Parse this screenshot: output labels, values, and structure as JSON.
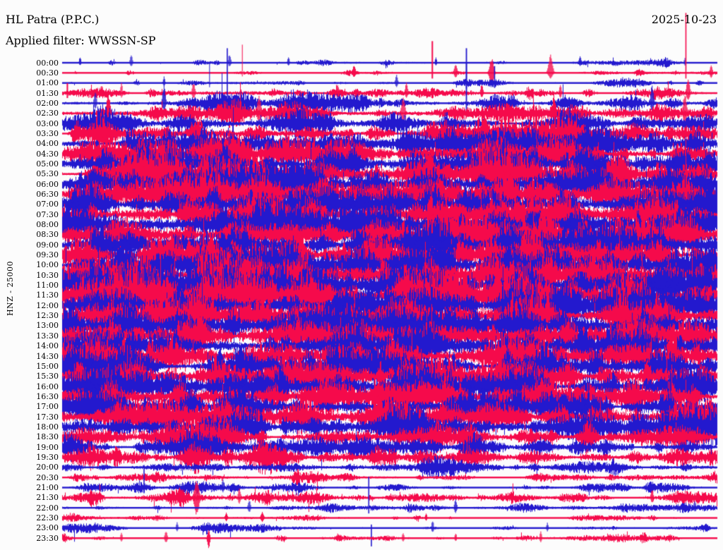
{
  "header": {
    "station": "HL Patra (P.P.C.)",
    "filter": "Applied filter: WWSSN-SP",
    "date": "2025-10-23"
  },
  "y_axis": {
    "channel_label": "HNZ - 25000"
  },
  "colors": {
    "trace_blue": "#2319CE",
    "trace_red": "#F50A4B",
    "text": "#000000",
    "background": "#FCFCFC"
  },
  "chart_data": {
    "type": "line",
    "subtype": "helicorder-seismogram",
    "title": "HL Patra (P.P.C.)",
    "station": "HL Patra (P.P.C.)",
    "channel": "HNZ",
    "gain_scale": "25000",
    "filter": "WWSSN-SP",
    "date": "2025-10-23",
    "minutes_per_row": 30,
    "row_color_cycle": [
      "blue",
      "red"
    ],
    "amplitude_units": "relative trace amplitude (px), qualitative envelope read from image",
    "rows": [
      {
        "t": "00:00",
        "c": "blue",
        "base": 0.8,
        "burst": 6,
        "spikes": [
          [
            0.027,
            9,
            4,
            3
          ],
          [
            0.105,
            11,
            5,
            4
          ],
          [
            0.255,
            13,
            6,
            4
          ],
          [
            0.345,
            10,
            5,
            3
          ],
          [
            0.57,
            8,
            4,
            3
          ],
          [
            0.79,
            10,
            5,
            4
          ],
          [
            0.95,
            7,
            4,
            3
          ]
        ]
      },
      {
        "t": "00:30",
        "c": "red",
        "base": 0.9,
        "burst": 5,
        "spikes": [
          [
            0.275,
            40,
            5,
            1
          ],
          [
            0.445,
            12,
            7,
            5
          ],
          [
            0.565,
            45,
            8,
            2
          ],
          [
            0.6,
            14,
            8,
            5
          ],
          [
            0.655,
            22,
            20,
            7
          ],
          [
            0.745,
            26,
            8,
            7
          ],
          [
            0.952,
            85,
            8,
            1.6
          ],
          [
            0.99,
            12,
            8,
            4
          ]
        ]
      },
      {
        "t": "01:00",
        "c": "blue",
        "base": 0.8,
        "burst": 5,
        "spikes": [
          [
            0.155,
            10,
            5,
            3
          ],
          [
            0.225,
            30,
            6,
            1
          ],
          [
            0.51,
            12,
            6,
            4
          ],
          [
            0.617,
            28,
            8,
            1.6
          ],
          [
            0.66,
            24,
            7,
            1.6
          ],
          [
            0.855,
            9,
            5,
            3
          ]
        ]
      },
      {
        "t": "01:30",
        "c": "red",
        "base": 1.6,
        "burst": 8,
        "spikes": [
          [
            0.008,
            14,
            7,
            2
          ],
          [
            0.06,
            12,
            6,
            4
          ],
          [
            0.09,
            16,
            7,
            3
          ],
          [
            0.2,
            15,
            8,
            5
          ],
          [
            0.42,
            13,
            7,
            4
          ],
          [
            0.525,
            18,
            8,
            4
          ],
          [
            0.64,
            14,
            7,
            4
          ],
          [
            0.76,
            12,
            7,
            4
          ],
          [
            0.955,
            24,
            12,
            5
          ]
        ]
      },
      {
        "t": "02:00",
        "c": "blue",
        "base": 2.6,
        "burst": 12,
        "spikes": [
          [
            0.05,
            18,
            9,
            4
          ],
          [
            0.155,
            28,
            12,
            5
          ],
          [
            0.252,
            78,
            12,
            1.6
          ],
          [
            0.617,
            78,
            12,
            1.8
          ],
          [
            0.9,
            28,
            12,
            5
          ]
        ]
      },
      {
        "t": "02:30",
        "c": "red",
        "base": 3.2,
        "burst": 13,
        "spikes": [
          [
            0.07,
            30,
            16,
            6
          ],
          [
            0.3,
            26,
            14,
            6
          ],
          [
            0.52,
            24,
            16,
            6
          ],
          [
            0.75,
            28,
            14,
            5
          ],
          [
            0.95,
            30,
            16,
            6
          ]
        ]
      },
      {
        "t": "03:00",
        "c": "blue",
        "base": 4.5,
        "burst": 16,
        "spikes": []
      },
      {
        "t": "03:30",
        "c": "red",
        "base": 5.5,
        "burst": 18,
        "spikes": []
      },
      {
        "t": "04:00",
        "c": "blue",
        "base": 6.5,
        "burst": 20,
        "spikes": []
      },
      {
        "t": "04:30",
        "c": "red",
        "base": 7,
        "burst": 20,
        "spikes": []
      },
      {
        "t": "05:00",
        "c": "blue",
        "base": 7.5,
        "burst": 21,
        "spikes": []
      },
      {
        "t": "05:30",
        "c": "red",
        "base": 7.5,
        "burst": 21,
        "spikes": []
      },
      {
        "t": "06:00",
        "c": "blue",
        "base": 8,
        "burst": 22,
        "spikes": []
      },
      {
        "t": "06:30",
        "c": "red",
        "base": 8,
        "burst": 22,
        "spikes": []
      },
      {
        "t": "07:00",
        "c": "blue",
        "base": 7.5,
        "burst": 20,
        "spikes": []
      },
      {
        "t": "07:30",
        "c": "red",
        "base": 7.5,
        "burst": 20,
        "spikes": []
      },
      {
        "t": "08:00",
        "c": "blue",
        "base": 8,
        "burst": 21,
        "spikes": []
      },
      {
        "t": "08:30",
        "c": "red",
        "base": 8,
        "burst": 21,
        "spikes": []
      },
      {
        "t": "09:00",
        "c": "blue",
        "base": 8,
        "burst": 22,
        "spikes": []
      },
      {
        "t": "09:30",
        "c": "red",
        "base": 8,
        "burst": 22,
        "spikes": []
      },
      {
        "t": "10:00",
        "c": "blue",
        "base": 8.5,
        "burst": 23,
        "spikes": []
      },
      {
        "t": "10:30",
        "c": "red",
        "base": 8.5,
        "burst": 23,
        "spikes": []
      },
      {
        "t": "11:00",
        "c": "blue",
        "base": 9,
        "burst": 25,
        "spikes": []
      },
      {
        "t": "11:30",
        "c": "red",
        "base": 9,
        "burst": 25,
        "spikes": []
      },
      {
        "t": "12:00",
        "c": "blue",
        "base": 9,
        "burst": 23,
        "spikes": []
      },
      {
        "t": "12:30",
        "c": "red",
        "base": 8.5,
        "burst": 22,
        "spikes": []
      },
      {
        "t": "13:00",
        "c": "blue",
        "base": 8.5,
        "burst": 22,
        "spikes": []
      },
      {
        "t": "13:30",
        "c": "red",
        "base": 8,
        "burst": 21,
        "spikes": []
      },
      {
        "t": "14:00",
        "c": "blue",
        "base": 8,
        "burst": 21,
        "spikes": []
      },
      {
        "t": "14:30",
        "c": "red",
        "base": 8,
        "burst": 21,
        "spikes": []
      },
      {
        "t": "15:00",
        "c": "blue",
        "base": 8,
        "burst": 21,
        "spikes": []
      },
      {
        "t": "15:30",
        "c": "red",
        "base": 8,
        "burst": 21,
        "spikes": []
      },
      {
        "t": "16:00",
        "c": "blue",
        "base": 8,
        "burst": 21,
        "spikes": []
      },
      {
        "t": "16:30",
        "c": "red",
        "base": 7.5,
        "burst": 20,
        "spikes": []
      },
      {
        "t": "17:00",
        "c": "blue",
        "base": 7.5,
        "burst": 20,
        "spikes": []
      },
      {
        "t": "17:30",
        "c": "red",
        "base": 7,
        "burst": 19,
        "spikes": []
      },
      {
        "t": "18:00",
        "c": "blue",
        "base": 7,
        "burst": 18,
        "spikes": []
      },
      {
        "t": "18:30",
        "c": "red",
        "base": 6,
        "burst": 16,
        "spikes": []
      },
      {
        "t": "19:00",
        "c": "blue",
        "base": 5.5,
        "burst": 15,
        "spikes": []
      },
      {
        "t": "19:30",
        "c": "red",
        "base": 5,
        "burst": 14,
        "spikes": []
      },
      {
        "t": "20:00",
        "c": "blue",
        "base": 3,
        "burst": 10,
        "spikes": []
      },
      {
        "t": "20:30",
        "c": "red",
        "base": 2,
        "burst": 8,
        "spikes": []
      },
      {
        "t": "21:00",
        "c": "blue",
        "base": 1.8,
        "burst": 8,
        "spikes": [
          [
            0.125,
            32,
            8,
            1.6
          ],
          [
            0.245,
            12,
            7,
            4
          ]
        ]
      },
      {
        "t": "21:30",
        "c": "red",
        "base": 1.8,
        "burst": 9,
        "spikes": [
          [
            0.205,
            26,
            26,
            8
          ],
          [
            0.27,
            14,
            9,
            4
          ],
          [
            0.9,
            13,
            8,
            4
          ]
        ]
      },
      {
        "t": "22:00",
        "c": "blue",
        "base": 1.5,
        "burst": 7,
        "spikes": [
          [
            0.285,
            12,
            7,
            4
          ],
          [
            0.468,
            44,
            8,
            1.6
          ],
          [
            0.6,
            13,
            8,
            4
          ],
          [
            0.965,
            11,
            6,
            3
          ]
        ]
      },
      {
        "t": "22:30",
        "c": "red",
        "base": 1.2,
        "burst": 5,
        "spikes": [
          [
            0.25,
            8,
            5,
            4
          ],
          [
            0.305,
            9,
            6,
            5
          ],
          [
            0.555,
            8,
            5,
            3
          ]
        ]
      },
      {
        "t": "23:00",
        "c": "blue",
        "base": 1.2,
        "burst": 6,
        "spikes": [
          [
            0.05,
            10,
            6,
            3
          ],
          [
            0.175,
            9,
            5,
            3
          ],
          [
            0.472,
            5,
            26,
            1.6
          ],
          [
            0.565,
            12,
            7,
            3
          ],
          [
            0.74,
            8,
            5,
            3
          ]
        ]
      },
      {
        "t": "23:30",
        "c": "red",
        "base": 1.2,
        "burst": 6,
        "spikes": [
          [
            0.09,
            8,
            5,
            3
          ],
          [
            0.158,
            11,
            7,
            4
          ],
          [
            0.223,
            13,
            16,
            4
          ],
          [
            0.42,
            8,
            5,
            3
          ],
          [
            0.52,
            9,
            6,
            3
          ],
          [
            0.6,
            8,
            5,
            3
          ],
          [
            0.73,
            10,
            6,
            3
          ]
        ]
      }
    ]
  }
}
